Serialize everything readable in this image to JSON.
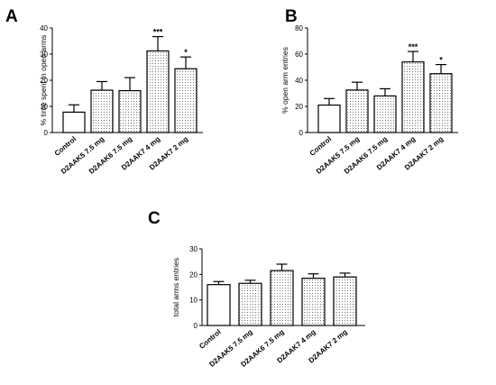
{
  "chart_data": [
    {
      "panel": "A",
      "type": "bar",
      "ylabel": "% time spent in open arms",
      "ylim": [
        0,
        40
      ],
      "yticks": [
        0,
        10,
        20,
        30,
        40
      ],
      "categories": [
        "Control",
        "D2AAK5 7.5 mg",
        "D2AAK6 7.5 mg",
        "D2AAK7 4 mg",
        "D2AAK7 2 mg"
      ],
      "values": [
        7.8,
        16.2,
        16.0,
        31.2,
        24.4
      ],
      "errors": [
        2.8,
        3.3,
        5.0,
        5.5,
        4.5
      ],
      "significance": [
        "",
        "",
        "",
        "***",
        "*"
      ],
      "fill": [
        "white",
        "dotted",
        "dotted",
        "dotted",
        "dotted"
      ]
    },
    {
      "panel": "B",
      "type": "bar",
      "ylabel": "% open arm entries",
      "ylim": [
        0,
        80
      ],
      "yticks": [
        0,
        20,
        40,
        60,
        80
      ],
      "categories": [
        "Control",
        "D2AAK5 7.5 mg",
        "D2AAK6 7.5 mg",
        "D2AAK7 4 mg",
        "D2AAK7 2 mg"
      ],
      "values": [
        21,
        32.5,
        28,
        54,
        45
      ],
      "errors": [
        5,
        6,
        5.5,
        8,
        7
      ],
      "significance": [
        "",
        "",
        "",
        "***",
        "*"
      ],
      "fill": [
        "white",
        "dotted",
        "dotted",
        "dotted",
        "dotted"
      ]
    },
    {
      "panel": "C",
      "type": "bar",
      "ylabel": "total arms entries",
      "ylim": [
        0,
        30
      ],
      "yticks": [
        0,
        10,
        20,
        30
      ],
      "categories": [
        "Control",
        "D2AAK5 7.5 mg",
        "D2AAK6 7.5 mg",
        "D2AAK7 4 mg",
        "D2AAK7 2 mg"
      ],
      "values": [
        16,
        16.5,
        21.5,
        18.5,
        19
      ],
      "errors": [
        1.2,
        1.2,
        2.5,
        1.7,
        1.5
      ],
      "significance": [
        "",
        "",
        "",
        "",
        ""
      ],
      "fill": [
        "white",
        "dotted",
        "dotted",
        "dotted",
        "dotted"
      ]
    }
  ]
}
